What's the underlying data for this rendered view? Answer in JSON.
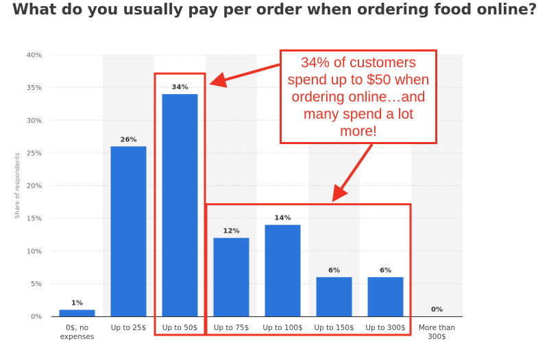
{
  "title": "What do you usually pay per order when ordering food online?",
  "callout_text": "34% of customers spend up to $50 when ordering online…and many spend a lot more!",
  "colors": {
    "bar": "#2b74d9",
    "highlight": "#ee3322",
    "band": "#f4f4f4",
    "grid": "#cccccc"
  },
  "chart_data": {
    "type": "bar",
    "title": "What do you usually pay per order when ordering food online?",
    "xlabel": "",
    "ylabel": "Share of respondents",
    "categories": [
      [
        "0$, no",
        "expenses"
      ],
      [
        "Up to 25$"
      ],
      [
        "Up to 50$"
      ],
      [
        "Up to 75$"
      ],
      [
        "Up to 100$"
      ],
      [
        "Up to 150$"
      ],
      [
        "Up to 300$"
      ],
      [
        "More than",
        "300$"
      ]
    ],
    "values": [
      1,
      26,
      34,
      12,
      14,
      6,
      6,
      0
    ],
    "data_labels": [
      "1%",
      "26%",
      "34%",
      "12%",
      "14%",
      "6%",
      "6%",
      "0%"
    ],
    "ylim": [
      0,
      40
    ],
    "yticks": [
      0,
      5,
      10,
      15,
      20,
      25,
      30,
      35,
      40
    ],
    "ytick_labels": [
      "0%",
      "5%",
      "10%",
      "15%",
      "20%",
      "25%",
      "30%",
      "35%",
      "40%"
    ],
    "grid": true,
    "highlight_groups": [
      [
        2,
        2
      ],
      [
        3,
        6
      ]
    ]
  }
}
